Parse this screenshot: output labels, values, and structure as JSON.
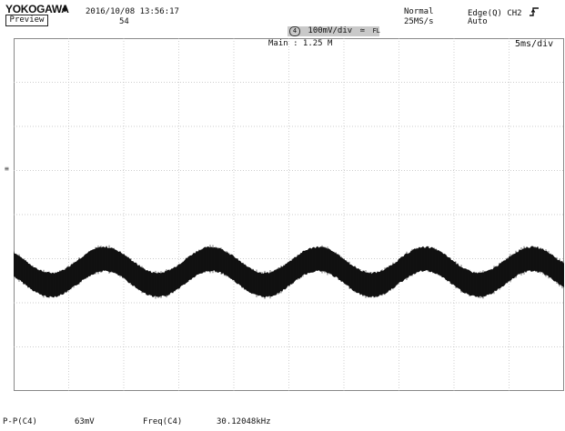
{
  "header": {
    "brand": "YOKOGAWA",
    "brand_icon": "diamond-icon",
    "preview_label": "Preview",
    "datetime": "2016/10/08  13:56:17",
    "record_number": "54",
    "mode": "Normal",
    "sample_rate": "25MS/s",
    "trigger_type": "Edge(Q) CH2",
    "trigger_slope_icon": "rising-edge-icon",
    "trigger_mode": "Auto"
  },
  "channel_bar": {
    "channel_number": "4",
    "scale": "100mV/div",
    "coupling": "AC",
    "bandwidth": "FULL",
    "background": "#c9c9c9"
  },
  "display": {
    "main_label": "Main : 1.25 M",
    "timebase": "5ms/div",
    "grid_divisions_x": 10,
    "grid_divisions_y": 8,
    "trace_color": "#111111",
    "grid_color": "#bdbdbd"
  },
  "waveform": {
    "channel": "CH4",
    "divisions_shown": 10,
    "baseline_div": 5.3,
    "ripple_cycles": 5.15,
    "ripple_phase_cycles": -0.6,
    "ripple_amplitude_div": 0.07,
    "noise_band_div": 0.12
  },
  "measurements": [
    {
      "name": "P-P(C4)",
      "value": "63mV"
    },
    {
      "name": "Freq(C4)",
      "value": "30.12048kHz"
    }
  ]
}
